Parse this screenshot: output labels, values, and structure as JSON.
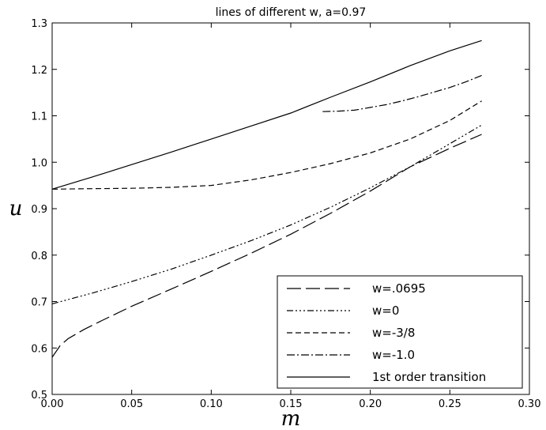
{
  "chart_data": {
    "type": "line",
    "title": "lines of different w, a=0.97",
    "xlabel": "m",
    "ylabel": "u",
    "xlim": [
      0.0,
      0.3
    ],
    "ylim": [
      0.5,
      1.3
    ],
    "xticks": [
      "0.00",
      "0.05",
      "0.10",
      "0.15",
      "0.20",
      "0.25",
      "0.30"
    ],
    "yticks": [
      "0.5",
      "0.6",
      "0.7",
      "0.8",
      "0.9",
      "1.0",
      "1.1",
      "1.2",
      "1.3"
    ],
    "grid": false,
    "legend_position": "bottom-right",
    "series": [
      {
        "name": "w=.0695",
        "dash": "18,6",
        "x": [
          0.0,
          0.005,
          0.01,
          0.02,
          0.03,
          0.05,
          0.075,
          0.1,
          0.125,
          0.15,
          0.175,
          0.2,
          0.225,
          0.25,
          0.27
        ],
        "y": [
          0.58,
          0.605,
          0.62,
          0.64,
          0.657,
          0.69,
          0.727,
          0.765,
          0.804,
          0.845,
          0.89,
          0.938,
          0.99,
          1.03,
          1.06
        ]
      },
      {
        "name": "w=0",
        "dash": "8,3,2,3,2,3,2,3",
        "x": [
          0.0,
          0.025,
          0.05,
          0.075,
          0.1,
          0.125,
          0.15,
          0.175,
          0.2,
          0.225,
          0.25,
          0.27
        ],
        "y": [
          0.695,
          0.718,
          0.743,
          0.77,
          0.8,
          0.831,
          0.865,
          0.903,
          0.945,
          0.99,
          1.04,
          1.08
        ]
      },
      {
        "name": "w=-3/8",
        "dash": "7,4",
        "x": [
          0.0,
          0.025,
          0.05,
          0.075,
          0.1,
          0.125,
          0.15,
          0.175,
          0.2,
          0.225,
          0.25,
          0.27
        ],
        "y": [
          0.942,
          0.943,
          0.944,
          0.946,
          0.95,
          0.962,
          0.978,
          0.997,
          1.02,
          1.05,
          1.09,
          1.132
        ]
      },
      {
        "name": "w=-1.0",
        "dash": "10,3,2,3",
        "x": [
          0.17,
          0.18,
          0.19,
          0.2,
          0.21,
          0.22,
          0.23,
          0.24,
          0.25,
          0.26,
          0.27
        ],
        "y": [
          1.109,
          1.11,
          1.112,
          1.118,
          1.124,
          1.132,
          1.141,
          1.151,
          1.161,
          1.173,
          1.187
        ]
      },
      {
        "name": "1st order transition",
        "dash": "",
        "x": [
          0.0,
          0.025,
          0.05,
          0.075,
          0.1,
          0.125,
          0.15,
          0.175,
          0.2,
          0.225,
          0.25,
          0.27
        ],
        "y": [
          0.942,
          0.968,
          0.995,
          1.022,
          1.05,
          1.078,
          1.106,
          1.14,
          1.173,
          1.208,
          1.24,
          1.262
        ]
      }
    ]
  }
}
